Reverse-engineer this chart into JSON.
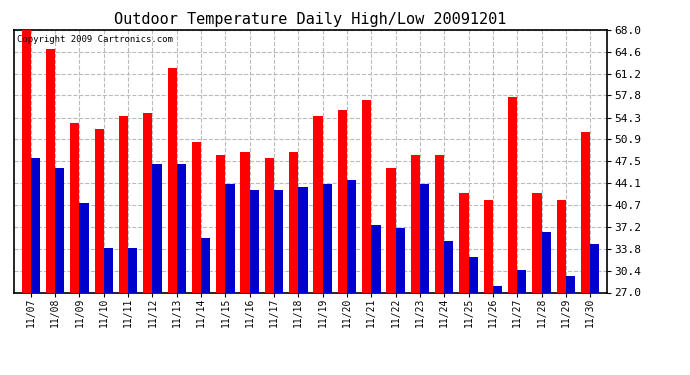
{
  "title": "Outdoor Temperature Daily High/Low 20091201",
  "copyright_text": "Copyright 2009 Cartronics.com",
  "dates": [
    "11/07",
    "11/08",
    "11/09",
    "11/10",
    "11/11",
    "11/12",
    "11/13",
    "11/14",
    "11/15",
    "11/16",
    "11/17",
    "11/18",
    "11/19",
    "11/20",
    "11/21",
    "11/22",
    "11/23",
    "11/24",
    "11/25",
    "11/26",
    "11/27",
    "11/28",
    "11/29",
    "11/30"
  ],
  "highs": [
    68.0,
    65.0,
    53.5,
    52.5,
    54.5,
    55.0,
    62.0,
    50.5,
    48.5,
    49.0,
    48.0,
    49.0,
    54.5,
    55.5,
    57.0,
    46.5,
    48.5,
    48.5,
    42.5,
    41.5,
    57.5,
    42.5,
    41.5,
    52.0
  ],
  "lows": [
    48.0,
    46.5,
    41.0,
    34.0,
    34.0,
    47.0,
    47.0,
    35.5,
    44.0,
    43.0,
    43.0,
    43.5,
    44.0,
    44.5,
    37.5,
    37.0,
    44.0,
    35.0,
    32.5,
    28.0,
    30.5,
    36.5,
    29.5,
    34.5
  ],
  "high_color": "#ff0000",
  "low_color": "#0000cc",
  "bg_color": "#ffffff",
  "plot_bg_color": "#ffffff",
  "grid_color": "#bbbbbb",
  "title_fontsize": 11,
  "yticks": [
    27.0,
    30.4,
    33.8,
    37.2,
    40.7,
    44.1,
    47.5,
    50.9,
    54.3,
    57.8,
    61.2,
    64.6,
    68.0
  ],
  "ymin": 27.0,
  "ymax": 68.0,
  "bar_width": 0.38,
  "figwidth": 6.9,
  "figheight": 3.75
}
